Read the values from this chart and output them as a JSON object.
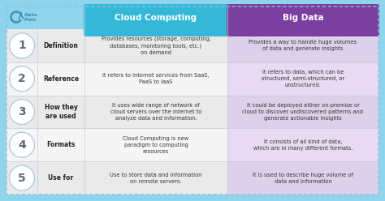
{
  "title_left": "Cloud Computing",
  "title_right": "Big Data",
  "header_color_left": "#35b8d8",
  "header_color_right": "#7b3fa0",
  "bg_color": "#8fd4ec",
  "row_bg_even": "#eaeaea",
  "row_bg_odd": "#f5f5f5",
  "row_right_even": "#ddd0ea",
  "row_right_odd": "#e8daf2",
  "number_text_color": "#5a5a6a",
  "divider_color": "#c0ccd8",
  "rows": [
    {
      "num": "1",
      "category": "Definition",
      "left": "Provides resources (storage, computing,\ndatabases, monitoring tools, etc.)\non demand",
      "right": "Provides a way to handle huge volumes\nof data and generate insights"
    },
    {
      "num": "2",
      "category": "Reference",
      "left": "It refers to internet services from SaaS,\nPaaS to IaaS",
      "right": "It refers to data, which can be\nstructured, semi-structured, or\nunstructured."
    },
    {
      "num": "3",
      "category": "How they\nare used",
      "left": "It uses wide range of network of\ncloud servers over the internet to\nanalyze data and information.",
      "right": "It could be deployed either on-premise or\ncloud to discover undiscovered patterns and\ngenerate actionable insights"
    },
    {
      "num": "4",
      "category": "Formats",
      "left": "Cloud Computing is new\nparadigm to computing\nresources",
      "right": "It consists of all kind of data,\nwhich are in many different formats."
    },
    {
      "num": "5",
      "category": "Use for",
      "left": "Use to store data and information\non remote servers.",
      "right": "It is used to describe huge volume of\ndata and information"
    }
  ],
  "logo_color": "#4090b8",
  "logo_text1": "Data",
  "logo_text2": "Flair"
}
